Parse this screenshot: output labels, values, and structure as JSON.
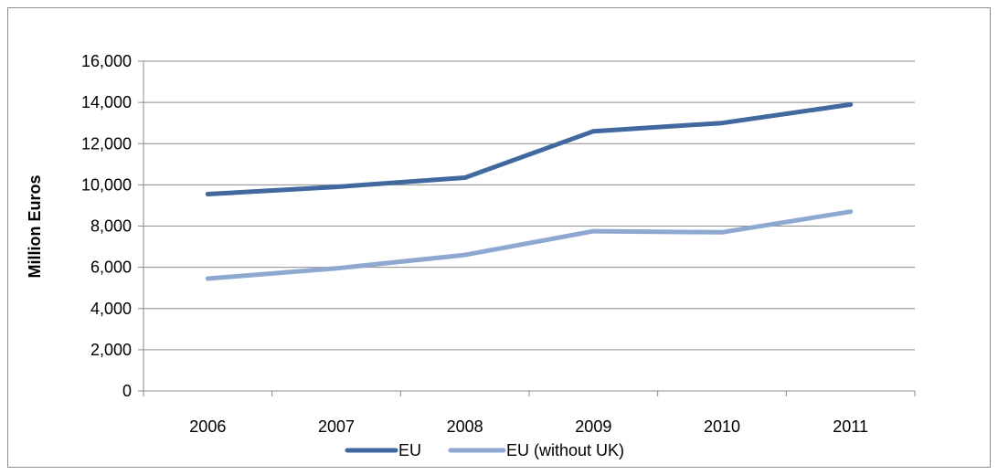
{
  "chart_data": {
    "type": "line",
    "title": "",
    "xlabel": "",
    "ylabel": "Million Euros",
    "categories": [
      "2006",
      "2007",
      "2008",
      "2009",
      "2010",
      "2011"
    ],
    "ylim": [
      0,
      16000
    ],
    "yticks": [
      0,
      2000,
      4000,
      6000,
      8000,
      10000,
      12000,
      14000,
      16000
    ],
    "ytick_labels": [
      "0",
      "2,000",
      "4,000",
      "6,000",
      "8,000",
      "10,000",
      "12,000",
      "14,000",
      "16,000"
    ],
    "grid": "horizontal",
    "legend_position": "bottom",
    "series": [
      {
        "name": "EU",
        "color": "#41689f",
        "values": [
          9550,
          9900,
          10350,
          12600,
          13000,
          13900
        ]
      },
      {
        "name": "EU (without UK)",
        "color": "#8ea8d1",
        "values": [
          5450,
          5950,
          6600,
          7750,
          7700,
          8700
        ]
      }
    ]
  }
}
